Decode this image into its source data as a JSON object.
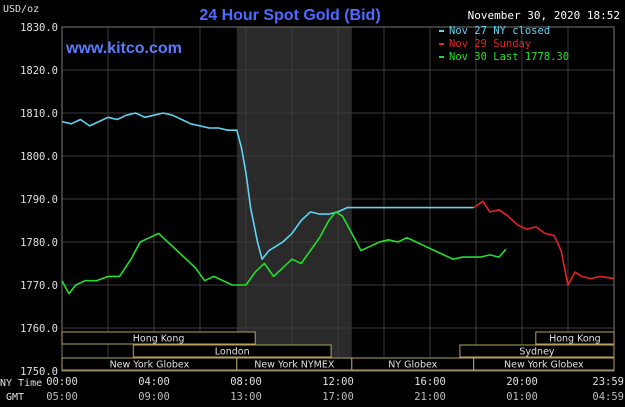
{
  "chart_data": {
    "type": "line",
    "title": "24 Hour Spot Gold (Bid)",
    "website": "www.kitco.com",
    "date_stamp": "November 30, 2020 18:52",
    "y_unit": "USD/oz",
    "ylim": [
      1750,
      1830
    ],
    "y_ticks": [
      "1830.0",
      "1820.0",
      "1810.0",
      "1800.0",
      "1790.0",
      "1780.0",
      "1770.0",
      "1760.0",
      "1750.0"
    ],
    "xlim": [
      0,
      24
    ],
    "ny_time_ticks": [
      "00:00",
      "04:00",
      "08:00",
      "12:00",
      "16:00",
      "20:00",
      "23:59"
    ],
    "gmt_ticks": [
      "05:00",
      "09:00",
      "13:00",
      "17:00",
      "21:00",
      "01:00",
      "04:59"
    ],
    "row_labels": {
      "ny": "NY Time",
      "gmt": "GMT"
    },
    "shaded_session_hours": [
      7.6,
      12.6
    ],
    "grid": true,
    "legend_position": "top-right",
    "legend": [
      {
        "label": "Nov 27 NY closed",
        "color": "#5fd4f0"
      },
      {
        "label": "Nov 29 Sunday",
        "color": "#e62222"
      },
      {
        "label": "Nov 30 Last 1778.30",
        "color": "#22e02a"
      }
    ],
    "series": [
      {
        "name": "Nov 27 NY closed",
        "color": "#5fd4f0",
        "points": [
          [
            0,
            1808
          ],
          [
            0.4,
            1807.5
          ],
          [
            0.8,
            1808.5
          ],
          [
            1.2,
            1807
          ],
          [
            1.6,
            1808
          ],
          [
            2,
            1809
          ],
          [
            2.4,
            1808.5
          ],
          [
            2.8,
            1809.5
          ],
          [
            3.2,
            1810
          ],
          [
            3.6,
            1809
          ],
          [
            4,
            1809.5
          ],
          [
            4.4,
            1810
          ],
          [
            4.8,
            1809.5
          ],
          [
            5.2,
            1808.5
          ],
          [
            5.6,
            1807.5
          ],
          [
            6,
            1807
          ],
          [
            6.4,
            1806.5
          ],
          [
            6.8,
            1806.5
          ],
          [
            7.2,
            1806
          ],
          [
            7.6,
            1806
          ],
          [
            7.8,
            1802
          ],
          [
            8.0,
            1796
          ],
          [
            8.2,
            1788
          ],
          [
            8.5,
            1780
          ],
          [
            8.7,
            1776
          ],
          [
            9.0,
            1778
          ],
          [
            9.3,
            1779
          ],
          [
            9.6,
            1780
          ],
          [
            10,
            1782
          ],
          [
            10.4,
            1785
          ],
          [
            10.8,
            1787
          ],
          [
            11.2,
            1786.5
          ],
          [
            11.6,
            1786.5
          ],
          [
            12,
            1787
          ],
          [
            12.4,
            1788
          ],
          [
            12.8,
            1788
          ],
          [
            13.2,
            1788
          ],
          [
            14,
            1788
          ],
          [
            15,
            1788
          ],
          [
            16,
            1788
          ],
          [
            17,
            1788
          ],
          [
            17.9,
            1788
          ]
        ]
      },
      {
        "name": "Nov 29 Sunday",
        "color": "#e62222",
        "points": [
          [
            17.9,
            1788
          ],
          [
            18.3,
            1789.5
          ],
          [
            18.6,
            1787
          ],
          [
            19.0,
            1787.5
          ],
          [
            19.4,
            1786
          ],
          [
            19.8,
            1784
          ],
          [
            20.2,
            1783
          ],
          [
            20.6,
            1783.5
          ],
          [
            21.0,
            1782
          ],
          [
            21.4,
            1781.5
          ],
          [
            21.7,
            1778
          ],
          [
            22.0,
            1770
          ],
          [
            22.3,
            1773
          ],
          [
            22.6,
            1772
          ],
          [
            23.0,
            1771.5
          ],
          [
            23.4,
            1772
          ],
          [
            23.99,
            1771.5
          ]
        ]
      },
      {
        "name": "Nov 30 Last 1778.30",
        "color": "#22e02a",
        "points": [
          [
            0,
            1771
          ],
          [
            0.3,
            1768
          ],
          [
            0.6,
            1770
          ],
          [
            1.0,
            1771
          ],
          [
            1.5,
            1771
          ],
          [
            2.0,
            1772
          ],
          [
            2.5,
            1772
          ],
          [
            3.0,
            1776
          ],
          [
            3.4,
            1780
          ],
          [
            3.8,
            1781
          ],
          [
            4.2,
            1782
          ],
          [
            4.6,
            1780
          ],
          [
            5.0,
            1778
          ],
          [
            5.4,
            1776
          ],
          [
            5.8,
            1774
          ],
          [
            6.2,
            1771
          ],
          [
            6.6,
            1772
          ],
          [
            7.0,
            1771
          ],
          [
            7.4,
            1770
          ],
          [
            7.8,
            1770
          ],
          [
            8.0,
            1770
          ],
          [
            8.4,
            1773
          ],
          [
            8.8,
            1775
          ],
          [
            9.2,
            1772
          ],
          [
            9.6,
            1774
          ],
          [
            10.0,
            1776
          ],
          [
            10.4,
            1775
          ],
          [
            10.8,
            1778
          ],
          [
            11.2,
            1781
          ],
          [
            11.6,
            1785
          ],
          [
            11.9,
            1787
          ],
          [
            12.2,
            1786
          ],
          [
            12.6,
            1782
          ],
          [
            13.0,
            1778
          ],
          [
            13.4,
            1779
          ],
          [
            13.8,
            1780
          ],
          [
            14.2,
            1780.5
          ],
          [
            14.6,
            1780
          ],
          [
            15.0,
            1781
          ],
          [
            15.4,
            1780
          ],
          [
            15.8,
            1779
          ],
          [
            16.2,
            1778
          ],
          [
            16.6,
            1777
          ],
          [
            17.0,
            1776
          ],
          [
            17.4,
            1776.5
          ],
          [
            17.8,
            1776.5
          ],
          [
            18.2,
            1776.5
          ],
          [
            18.6,
            1777
          ],
          [
            19.0,
            1776.5
          ],
          [
            19.3,
            1778.3
          ]
        ]
      }
    ],
    "sessions": [
      {
        "label": "Hong Kong",
        "start": 0,
        "end": 8.4,
        "row": 0
      },
      {
        "label": "Hong Kong",
        "start": 20.6,
        "end": 24,
        "row": 0
      },
      {
        "label": "London",
        "start": 3.1,
        "end": 11.7,
        "row": 1
      },
      {
        "label": "Sydney",
        "start": 17.3,
        "end": 24,
        "row": 1
      },
      {
        "label": "New York Globex",
        "start": 0,
        "end": 7.6,
        "row": 2
      },
      {
        "label": "New York NYMEX",
        "start": 7.6,
        "end": 12.6,
        "row": 2
      },
      {
        "label": "NY Globex",
        "start": 12.6,
        "end": 17.9,
        "row": 2
      },
      {
        "label": "New York Globex",
        "start": 17.9,
        "end": 24,
        "row": 2
      }
    ]
  }
}
